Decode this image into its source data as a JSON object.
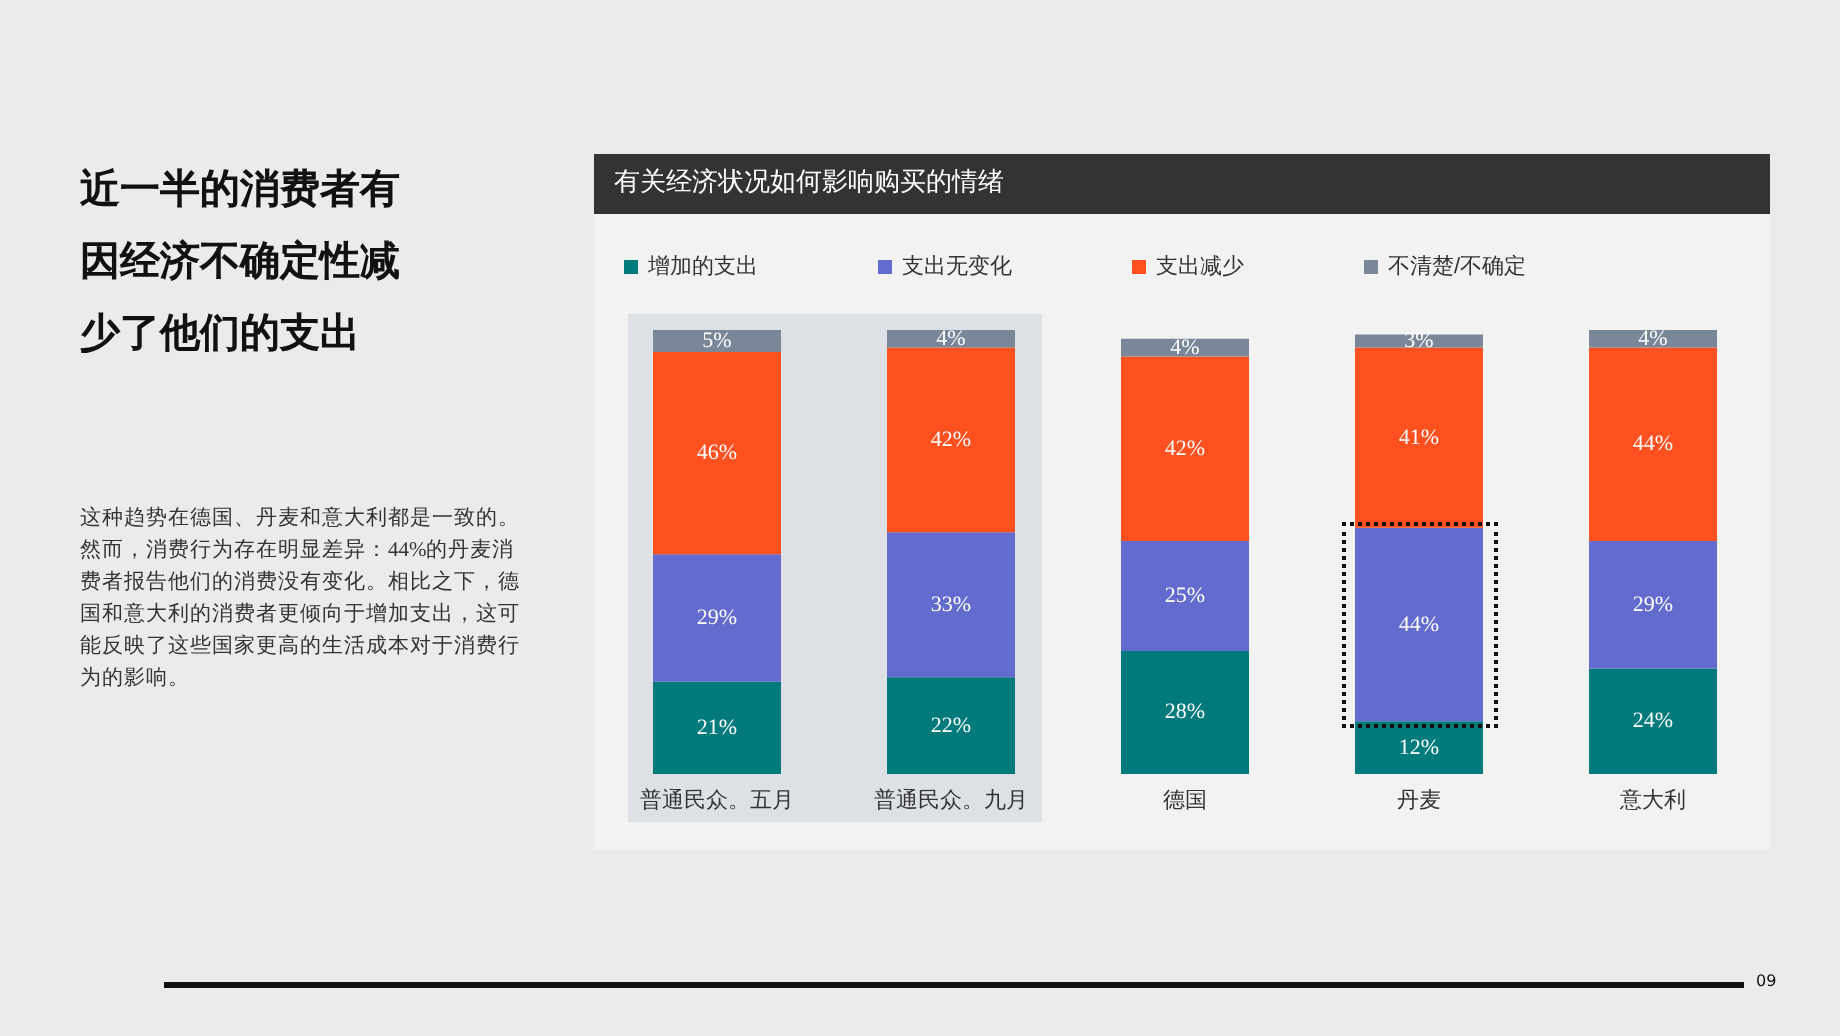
{
  "chart_data": {
    "type": "bar",
    "title": "有关经济状况如何影响购买的情绪",
    "stacked": true,
    "legend": "top",
    "tick_labels": "x",
    "categories": [
      "普通民众。五月",
      "普通民众。九月",
      "德国",
      "丹麦",
      "意大利"
    ],
    "series": [
      {
        "name": "增加的支出",
        "color": "#007a7a",
        "values": [
          21,
          22,
          28,
          12,
          24
        ],
        "value_labels": [
          "21%",
          "22%",
          "28%",
          "12%",
          "24%"
        ]
      },
      {
        "name": "支出无变化",
        "color": "#636bcf",
        "values": [
          29,
          33,
          25,
          44,
          29
        ],
        "value_labels": [
          "29%",
          "33%",
          "25%",
          "44%",
          "29%"
        ]
      },
      {
        "name": "支出减少",
        "color": "#ff5020",
        "values": [
          46,
          42,
          42,
          41,
          44
        ],
        "value_labels": [
          "46%",
          "42%",
          "42%",
          "41%",
          "44%"
        ]
      },
      {
        "name": "不清楚/不确定",
        "color": "#7a8799",
        "values": [
          5,
          4,
          4,
          3,
          4
        ],
        "value_labels": [
          "5%",
          "4%",
          "4%",
          "3%",
          "4%"
        ]
      }
    ],
    "bands": [
      {
        "axis": "x",
        "from": "普通民众。五月",
        "to": "普通民众。九月",
        "color": "#dde0e5"
      }
    ],
    "annotations": [
      "近一半的消费者有因经济不确定性减少了他们的支出",
      "这种趋势在德国、丹麦和意大利都是一致的。然而，消费行为存在明显差异：44%的丹麦消费者报告他们的消费没有变化。相比之下，德国和意大利的消费者更倾向于增加支出，这可能反映了这些国家更高的生活成本对于消费行为的影响。",
      "09"
    ]
  }
}
